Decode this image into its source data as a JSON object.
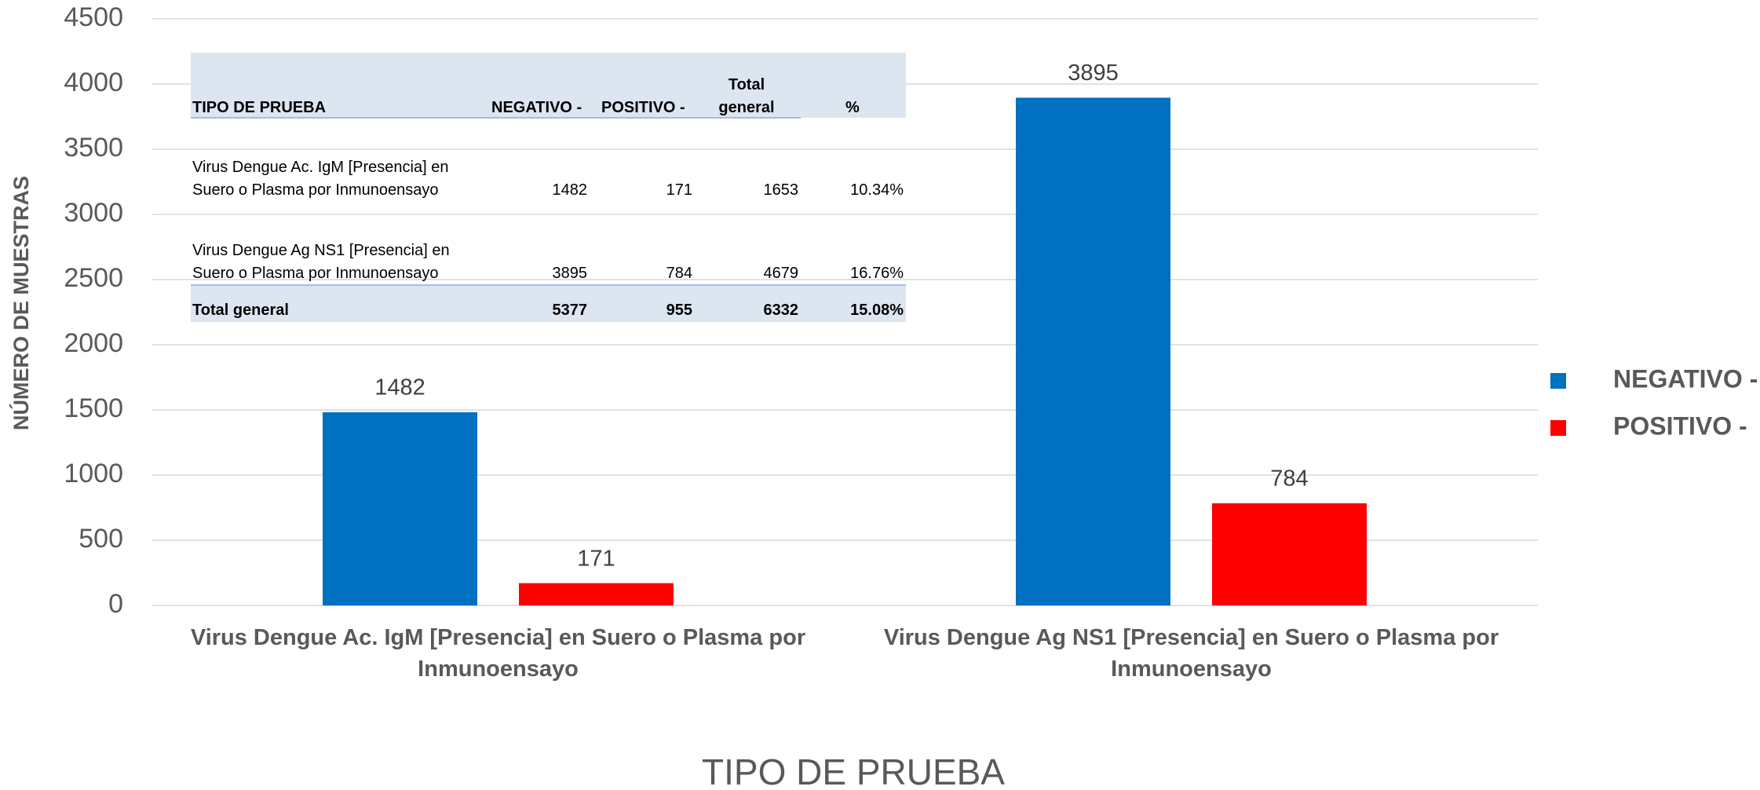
{
  "chart_data": {
    "type": "bar",
    "x_label": "TIPO DE PRUEBA",
    "y_label": "NÚMERO DE MUESTRAS",
    "categories": [
      "Virus Dengue Ac. IgM [Presencia] en Suero o Plasma por Inmunoensayo",
      "Virus Dengue Ag NS1 [Presencia] en Suero o Plasma por Inmunoensayo"
    ],
    "series": [
      {
        "name": "NEGATIVO -",
        "color": "#0070c0",
        "values": [
          1482,
          3895
        ]
      },
      {
        "name": "POSITIVO -",
        "color": "#ff0000",
        "values": [
          171,
          784
        ]
      }
    ],
    "ylim": [
      0,
      4500
    ],
    "yticks": [
      0,
      500,
      1000,
      1500,
      2000,
      2500,
      3000,
      3500,
      4000,
      4500
    ],
    "grid": true,
    "legend": "right"
  },
  "table": {
    "headers": [
      "TIPO DE PRUEBA",
      "NEGATIVO -",
      "POSITIVO -",
      "Total general",
      "%"
    ],
    "rows": [
      [
        "Virus Dengue Ac. IgM [Presencia] en Suero o Plasma por Inmunoensayo",
        1482,
        171,
        1653,
        "10.34%"
      ],
      [
        "Virus Dengue Ag NS1 [Presencia] en Suero o Plasma por Inmunoensayo",
        3895,
        784,
        4679,
        "16.76%"
      ]
    ],
    "total": [
      "Total general",
      5377,
      955,
      6332,
      "15.08%"
    ]
  }
}
